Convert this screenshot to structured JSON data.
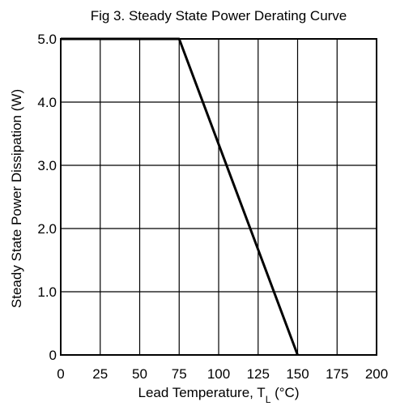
{
  "chart_data": {
    "type": "line",
    "title": "Fig  3. Steady State Power Derating Curve",
    "xlabel": "Lead Temperature, T",
    "xlabel_subscript": "L",
    "xlabel_unit": " (°C)",
    "ylabel": "Steady State Power Dissipation (W)",
    "xlim": [
      0,
      200
    ],
    "ylim": [
      0,
      5
    ],
    "x_ticks": [
      0,
      25,
      50,
      75,
      100,
      125,
      150,
      175,
      200
    ],
    "x_tick_labels": [
      "0",
      "25",
      "50",
      "75",
      "100",
      "125",
      "150",
      "175",
      "200"
    ],
    "y_ticks": [
      0,
      1,
      2,
      3,
      4,
      5
    ],
    "y_tick_labels": [
      "0",
      "1.0",
      "2.0",
      "3.0",
      "4.0",
      "5.0"
    ],
    "grid": true,
    "line_color": "#000000",
    "series": [
      {
        "x": [
          0,
          75,
          150
        ],
        "y": [
          5.0,
          5.0,
          0
        ]
      }
    ]
  }
}
